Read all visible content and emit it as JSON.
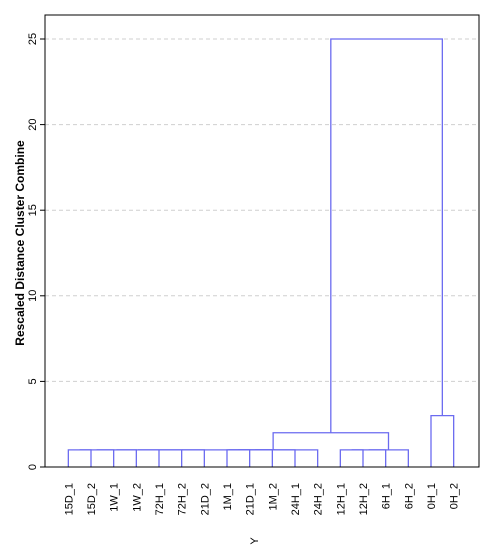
{
  "chart_data": {
    "type": "dendrogram",
    "ylabel": "Rescaled Distance Cluster Combine",
    "xlabel": "Y",
    "ylim": [
      0,
      27
    ],
    "yticks": [
      0,
      5,
      10,
      15,
      20,
      25
    ],
    "ytick_labels": [
      "0",
      "5",
      "10",
      "15",
      "20",
      "25"
    ],
    "grid": true,
    "leaves": [
      "15D_1",
      "15D_2",
      "1W_1",
      "1W_2",
      "72H_1",
      "72H_2",
      "21D_2",
      "1M_1",
      "21D_1",
      "1M_2",
      "24H_1",
      "24H_2",
      "12H_1",
      "12H_2",
      "6H_1",
      "6H_2",
      "0H_1",
      "0H_2"
    ],
    "merges": [
      {
        "left": [
          0
        ],
        "right": [
          1
        ],
        "height": 1
      },
      {
        "left": [
          0,
          1
        ],
        "right": [
          2
        ],
        "height": 1
      },
      {
        "left": [
          0,
          1,
          2
        ],
        "right": [
          3
        ],
        "height": 1
      },
      {
        "left": [
          0,
          1,
          2,
          3
        ],
        "right": [
          4
        ],
        "height": 1
      },
      {
        "left": [
          0,
          1,
          2,
          3,
          4
        ],
        "right": [
          5
        ],
        "height": 1
      },
      {
        "left": [
          0,
          1,
          2,
          3,
          4,
          5
        ],
        "right": [
          6
        ],
        "height": 1
      },
      {
        "left": [
          7
        ],
        "right": [
          8
        ],
        "height": 1
      },
      {
        "left": [
          7,
          8
        ],
        "right": [
          9
        ],
        "height": 1
      },
      {
        "left": [
          7,
          8,
          9
        ],
        "right": [
          10
        ],
        "height": 1
      },
      {
        "left": [
          12
        ],
        "right": [
          13
        ],
        "height": 1
      },
      {
        "left": [
          12,
          13
        ],
        "right": [
          14
        ],
        "height": 1
      },
      {
        "left": [
          12,
          13,
          14
        ],
        "right": [
          15
        ],
        "height": 1
      },
      {
        "left": [
          0,
          1,
          2,
          3,
          4,
          5,
          6
        ],
        "right": [
          7,
          8,
          9,
          10
        ],
        "height": 1
      },
      {
        "left": [
          0,
          1,
          2,
          3,
          4,
          5,
          6,
          7,
          8,
          9,
          10
        ],
        "right": [
          11
        ],
        "height": 1
      },
      {
        "left": [
          0,
          1,
          2,
          3,
          4,
          5,
          6,
          7,
          8,
          9,
          10,
          11
        ],
        "right": [
          12,
          13,
          14,
          15
        ],
        "height": 2
      },
      {
        "left": [
          16
        ],
        "right": [
          17
        ],
        "height": 3
      },
      {
        "left": [
          0,
          1,
          2,
          3,
          4,
          5,
          6,
          7,
          8,
          9,
          10,
          11,
          12,
          13,
          14,
          15
        ],
        "right": [
          16,
          17
        ],
        "height": 25
      }
    ],
    "colors": {
      "link": "#6b6bf0",
      "grid": "#cfcfcf",
      "frame": "#000000"
    }
  }
}
